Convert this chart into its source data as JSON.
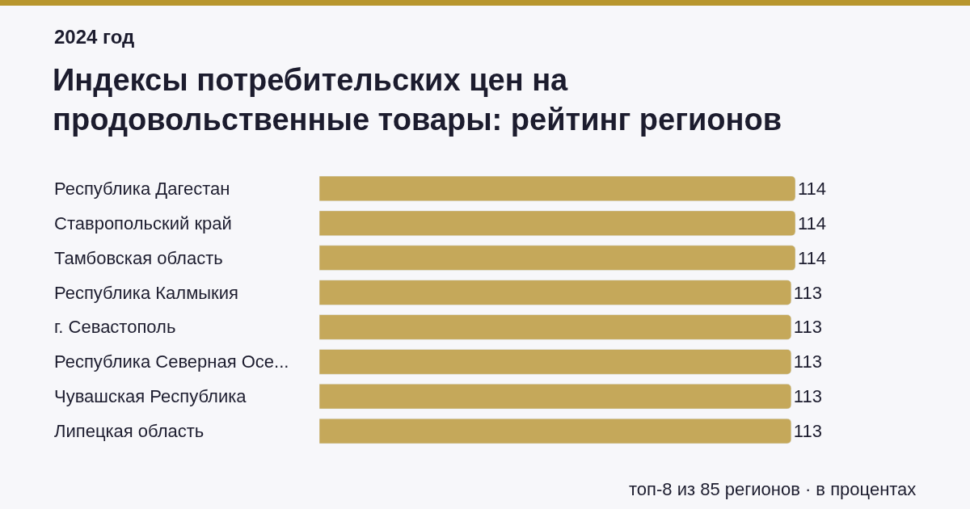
{
  "chart_data": {
    "type": "bar",
    "orientation": "horizontal",
    "title": "Индексы потребительских цен на\nпродовольственные товары: рейтинг регионов",
    "subtitle": "2024 год",
    "categories": [
      "Республика Дагестан",
      "Ставропольский край",
      "Тамбовская область",
      "Республика Калмыкия",
      "г. Севастополь",
      "Республика Северная Осе...",
      "Чувашская Республика",
      "Липецкая область"
    ],
    "values": [
      114,
      114,
      114,
      113,
      113,
      113,
      113,
      113
    ],
    "color": "#c5a85a",
    "data_labels": true,
    "grid": false,
    "legend": false,
    "annotations": [
      "топ-8 из 85 регионов · в процентах"
    ]
  }
}
